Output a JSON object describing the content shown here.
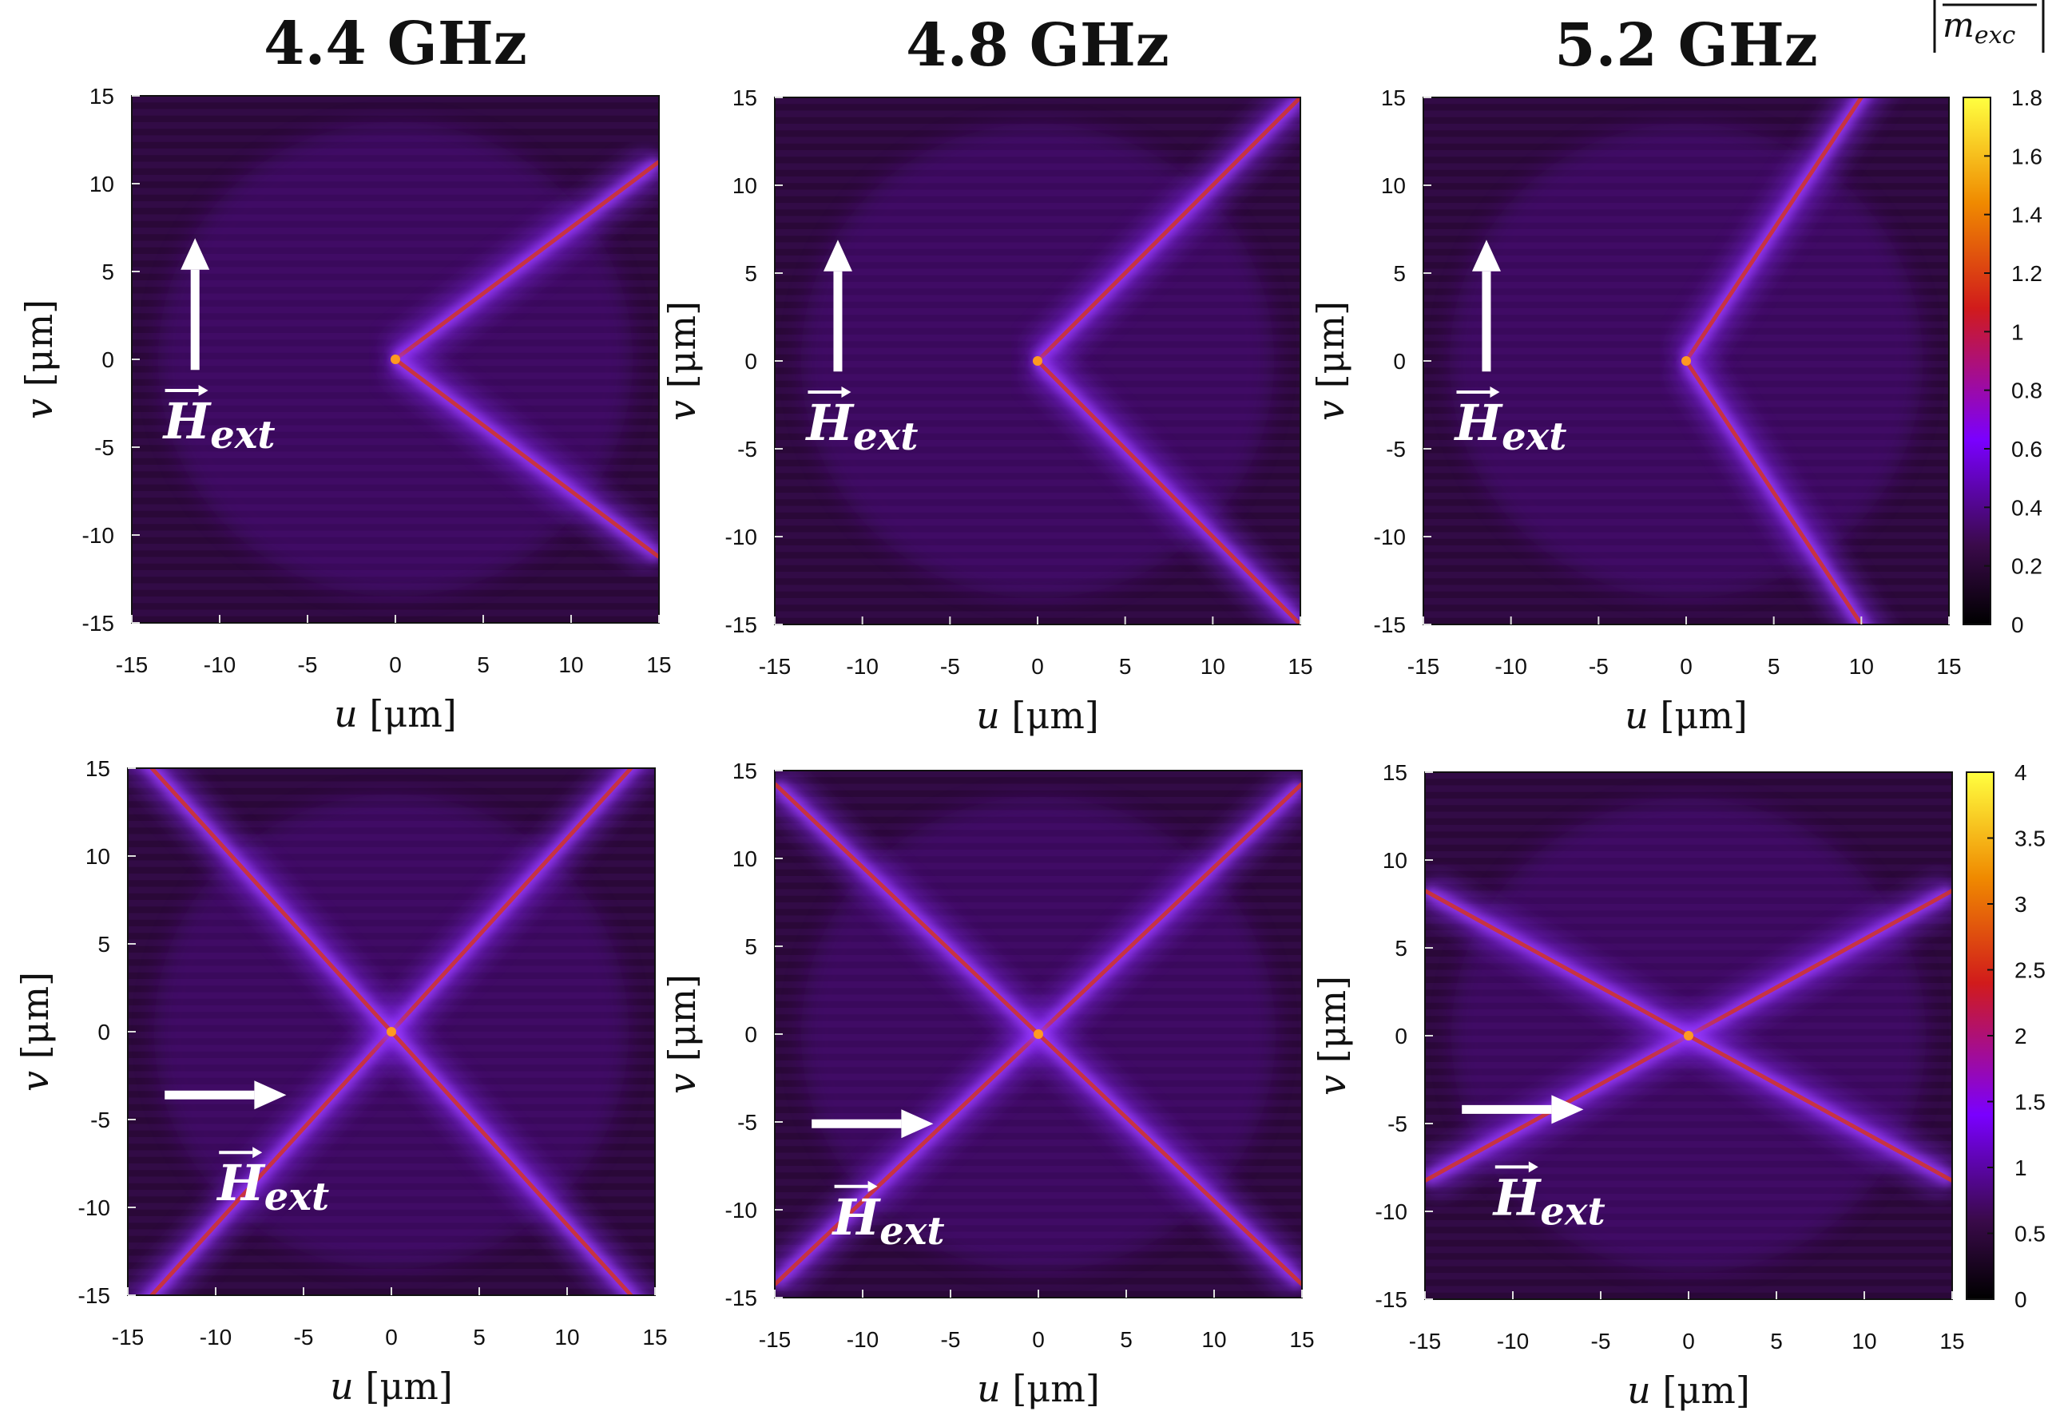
{
  "figure": {
    "colorbar_title": "m",
    "colorbar_title_sub": "exc",
    "field_label": "H",
    "field_label_sub": "ext"
  },
  "chart_data": [
    {
      "type": "heatmap",
      "title": "4.4 GHz",
      "xlabel_var": "u",
      "xlabel_unit": " [μm]",
      "ylabel_var": "v",
      "ylabel_unit": " [μm]",
      "xlim": [
        -15,
        15
      ],
      "ylim": [
        -15,
        15
      ],
      "xticks": [
        -15,
        -10,
        -5,
        0,
        5,
        10,
        15
      ],
      "yticks": [
        -15,
        -10,
        -5,
        0,
        5,
        10,
        15
      ],
      "field_direction": "up",
      "beam_pattern": "rightward-wedge",
      "beam_slopes": [
        0.75,
        -0.75
      ],
      "colorbar": null
    },
    {
      "type": "heatmap",
      "title": "4.8 GHz",
      "xlabel_var": "u",
      "xlabel_unit": " [μm]",
      "ylabel_var": "v",
      "ylabel_unit": " [μm]",
      "xlim": [
        -15,
        15
      ],
      "ylim": [
        -15,
        15
      ],
      "xticks": [
        -15,
        -10,
        -5,
        0,
        5,
        10,
        15
      ],
      "yticks": [
        -15,
        -10,
        -5,
        0,
        5,
        10,
        15
      ],
      "field_direction": "up",
      "beam_pattern": "rightward-wedge",
      "beam_slopes": [
        1.0,
        -1.0
      ],
      "colorbar": null
    },
    {
      "type": "heatmap",
      "title": "5.2 GHz",
      "xlabel_var": "u",
      "xlabel_unit": " [μm]",
      "ylabel_var": "v",
      "ylabel_unit": " [μm]",
      "xlim": [
        -15,
        15
      ],
      "ylim": [
        -15,
        15
      ],
      "xticks": [
        -15,
        -10,
        -5,
        0,
        5,
        10,
        15
      ],
      "yticks": [
        -15,
        -10,
        -5,
        0,
        5,
        10,
        15
      ],
      "field_direction": "up",
      "beam_pattern": "rightward-wedge",
      "beam_slopes": [
        1.5,
        -1.5
      ],
      "colorbar": {
        "min": 0,
        "max": 1.8,
        "ticks": [
          0,
          0.2,
          0.4,
          0.6,
          0.8,
          1,
          1.2,
          1.4,
          1.6,
          1.8
        ]
      }
    },
    {
      "type": "heatmap",
      "title": "",
      "xlabel_var": "u",
      "xlabel_unit": " [μm]",
      "ylabel_var": "v",
      "ylabel_unit": " [μm]",
      "xlim": [
        -15,
        15
      ],
      "ylim": [
        -15,
        15
      ],
      "xticks": [
        -15,
        -10,
        -5,
        0,
        5,
        10,
        15
      ],
      "yticks": [
        -15,
        -10,
        -5,
        0,
        5,
        10,
        15
      ],
      "field_direction": "right",
      "beam_pattern": "x-cross",
      "beam_slopes": [
        1.1,
        -1.1
      ],
      "colorbar": null
    },
    {
      "type": "heatmap",
      "title": "",
      "xlabel_var": "u",
      "xlabel_unit": " [μm]",
      "ylabel_var": "v",
      "ylabel_unit": " [μm]",
      "xlim": [
        -15,
        15
      ],
      "ylim": [
        -15,
        15
      ],
      "xticks": [
        -15,
        -10,
        -5,
        0,
        5,
        10,
        15
      ],
      "yticks": [
        -15,
        -10,
        -5,
        0,
        5,
        10,
        15
      ],
      "field_direction": "right",
      "beam_pattern": "x-cross",
      "beam_slopes": [
        0.95,
        -0.95
      ],
      "colorbar": null
    },
    {
      "type": "heatmap",
      "title": "",
      "xlabel_var": "u",
      "xlabel_unit": " [μm]",
      "ylabel_var": "v",
      "ylabel_unit": " [μm]",
      "xlim": [
        -15,
        15
      ],
      "ylim": [
        -15,
        15
      ],
      "xticks": [
        -15,
        -10,
        -5,
        0,
        5,
        10,
        15
      ],
      "yticks": [
        -15,
        -10,
        -5,
        0,
        5,
        10,
        15
      ],
      "field_direction": "right",
      "beam_pattern": "x-cross",
      "beam_slopes": [
        0.55,
        -0.55
      ],
      "colorbar": {
        "min": 0,
        "max": 4,
        "ticks": [
          0,
          0.5,
          1,
          1.5,
          2,
          2.5,
          3,
          3.5,
          4
        ]
      }
    }
  ],
  "colormap": [
    "#000000",
    "#3a0a4a",
    "#7a00ff",
    "#d11b1b",
    "#f08a00",
    "#ffff40"
  ]
}
